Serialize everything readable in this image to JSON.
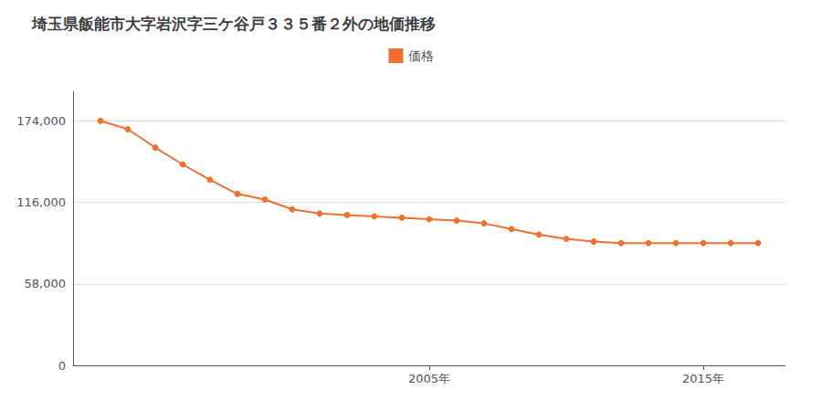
{
  "chart_data": {
    "type": "line",
    "title": "埼玉県飯能市大字岩沢字三ケ谷戸３３５番２外の地価推移",
    "x": [
      1993,
      1994,
      1995,
      1996,
      1997,
      1998,
      1999,
      2000,
      2001,
      2002,
      2003,
      2004,
      2005,
      2006,
      2007,
      2008,
      2009,
      2010,
      2011,
      2012,
      2013,
      2014,
      2015,
      2016,
      2017
    ],
    "series": [
      {
        "name": "価格",
        "color": "#f07030",
        "values": [
          174000,
          168000,
          155000,
          143000,
          132000,
          122000,
          118000,
          111000,
          108000,
          107000,
          106000,
          105000,
          104000,
          103000,
          101000,
          97000,
          93000,
          90000,
          88000,
          87000,
          87000,
          87000,
          87000,
          87000,
          87000
        ]
      }
    ],
    "marker": "circle",
    "xlim": [
      1992,
      2018
    ],
    "xticks": [
      {
        "value": 2005,
        "label": "2005年"
      },
      {
        "value": 2015,
        "label": "2015年"
      }
    ],
    "ylim": [
      0,
      195000
    ],
    "yticks": [
      0,
      {
        "value": 58000,
        "label": "58,000"
      },
      {
        "value": 116000,
        "label": "116,000"
      },
      {
        "value": 174000,
        "label": "174,000"
      }
    ],
    "grid": true,
    "legend": "top"
  }
}
